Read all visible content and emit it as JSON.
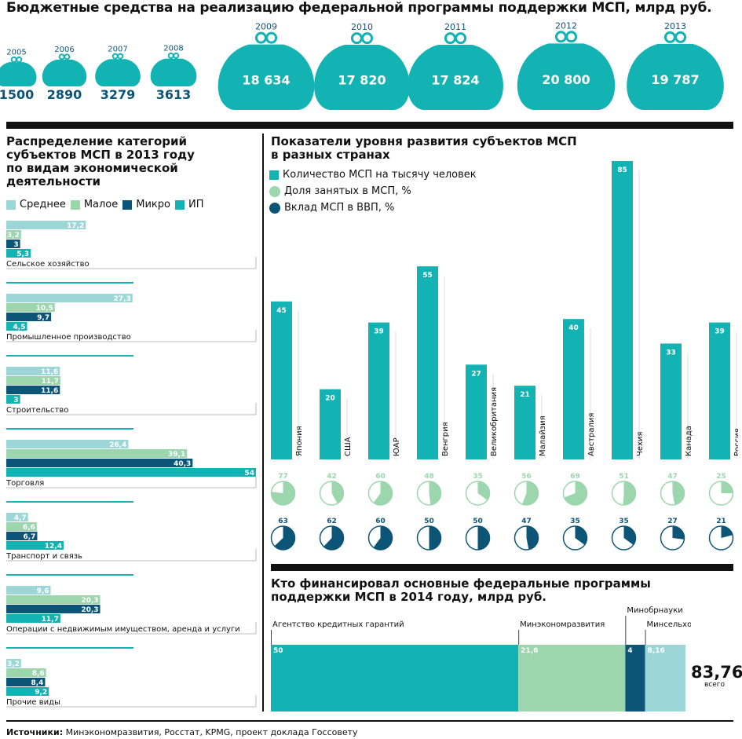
{
  "title": "Бюджетные средства на реализацию федеральной программы поддержки МСП, млрд руб.",
  "colors": {
    "teal": "#14b3b3",
    "light_teal": "#9dd6d6",
    "light_green": "#9bd6ad",
    "navy": "#0d5576",
    "text": "#111111"
  },
  "budget": {
    "items": [
      {
        "year": "2005",
        "value": "1500"
      },
      {
        "year": "2006",
        "value": "2890"
      },
      {
        "year": "2007",
        "value": "3279"
      },
      {
        "year": "2008",
        "value": "3613"
      },
      {
        "year": "2009",
        "value": "18 634"
      },
      {
        "year": "2010",
        "value": "17 820"
      },
      {
        "year": "2011",
        "value": "17 824"
      },
      {
        "year": "2012",
        "value": "20 800"
      },
      {
        "year": "2013",
        "value": "19 787"
      }
    ],
    "numeric": [
      1500,
      2890,
      3279,
      3613,
      18634,
      17820,
      17824,
      20800,
      19787
    ]
  },
  "left_section": {
    "title_lines": [
      "Распределение категорий",
      "субъектов МСП в 2013 году",
      "по видам экономической",
      "деятельности"
    ]
  },
  "country_section": {
    "title_lines": [
      "Показатели уровня развития субъектов МСП",
      "в разных странах"
    ],
    "legend": [
      "Количество МСП на тысячу человек",
      "Доля занятых в МСП, %",
      "Вклад МСП в ВВП, %"
    ]
  },
  "fund_section": {
    "title_lines": [
      "Кто финансировал основные федеральные программы",
      "поддержки МСП в 2014 году, млрд руб."
    ],
    "total_value": "83,76",
    "total_label": "всего"
  },
  "sources": {
    "label": "Источники:",
    "text": " Минэкономразвития, Росстат, KPMG, проект доклада Госсовету"
  },
  "chart_data": [
    {
      "type": "bar",
      "title": "Бюджетные средства на реализацию федеральной программы поддержки МСП, млрд руб.",
      "categories": [
        "2005",
        "2006",
        "2007",
        "2008",
        "2009",
        "2010",
        "2011",
        "2012",
        "2013"
      ],
      "values": [
        1500,
        2890,
        3279,
        3613,
        18634,
        17820,
        17824,
        20800,
        19787
      ]
    },
    {
      "type": "bar",
      "orientation": "horizontal",
      "title": "Распределение категорий субъектов МСП в 2013 году по видам экономической деятельности",
      "categories": [
        "Сельское хозяйство",
        "Промышленное производство",
        "Строительство",
        "Торговля",
        "Транспорт и связь",
        "Операции с недвижимым имуществом, аренда и услуги",
        "Прочие виды"
      ],
      "series": [
        {
          "name": "Среднее",
          "values": [
            17.2,
            27.3,
            11.6,
            26.4,
            4.7,
            9.6,
            3.2
          ],
          "labels": [
            "17,2",
            "27,3",
            "11,6",
            "26,4",
            "4,7",
            "9,6",
            "3,2"
          ]
        },
        {
          "name": "Малое",
          "values": [
            3.2,
            10.5,
            11.7,
            39.1,
            6.6,
            20.3,
            8.6
          ],
          "labels": [
            "3,2",
            "10,5",
            "11,7",
            "39,1",
            "6,6",
            "20,3",
            "8,6"
          ]
        },
        {
          "name": "Микро",
          "values": [
            3,
            9.7,
            11.6,
            40.3,
            6.7,
            20.3,
            8.4
          ],
          "labels": [
            "3",
            "9,7",
            "11,6",
            "40,3",
            "6,7",
            "20,3",
            "8,4"
          ]
        },
        {
          "name": "ИП",
          "values": [
            5.3,
            4.5,
            3,
            54,
            12.4,
            11.7,
            9.2
          ],
          "labels": [
            "5,3",
            "4,5",
            "3",
            "54",
            "12,4",
            "11,7",
            "9,2"
          ]
        }
      ],
      "xlim": [
        0,
        54
      ]
    },
    {
      "type": "bar",
      "title": "Показатели уровня развития субъектов МСП в разных странах",
      "categories": [
        "Япония",
        "США",
        "ЮАР",
        "Венгрия",
        "Великобритания",
        "Малайзия",
        "Австралия",
        "Чехия",
        "Канада",
        "Россия"
      ],
      "series": [
        {
          "name": "Количество МСП на тысячу человек",
          "values": [
            45,
            20,
            39,
            55,
            27,
            21,
            40,
            85,
            33,
            39
          ]
        },
        {
          "name": "Доля занятых в МСП, %",
          "values": [
            77,
            42,
            60,
            48,
            35,
            56,
            69,
            51,
            47,
            25
          ]
        },
        {
          "name": "Вклад МСП в ВВП, %",
          "values": [
            63,
            62,
            60,
            50,
            50,
            47,
            35,
            35,
            27,
            21
          ]
        }
      ],
      "ylim": [
        0,
        85
      ]
    },
    {
      "type": "bar",
      "orientation": "stacked-horizontal",
      "title": "Кто финансировал основные федеральные программы поддержки МСП в 2014 году, млрд руб.",
      "categories": [
        "Агентство кредитных гарантий",
        "Минэкономразвития",
        "Минобрнауки",
        "Минсельхоз"
      ],
      "values": [
        50,
        21.6,
        4,
        8.16
      ],
      "labels": [
        "50",
        "21,6",
        "4",
        "8,16"
      ],
      "total": 83.76
    }
  ]
}
